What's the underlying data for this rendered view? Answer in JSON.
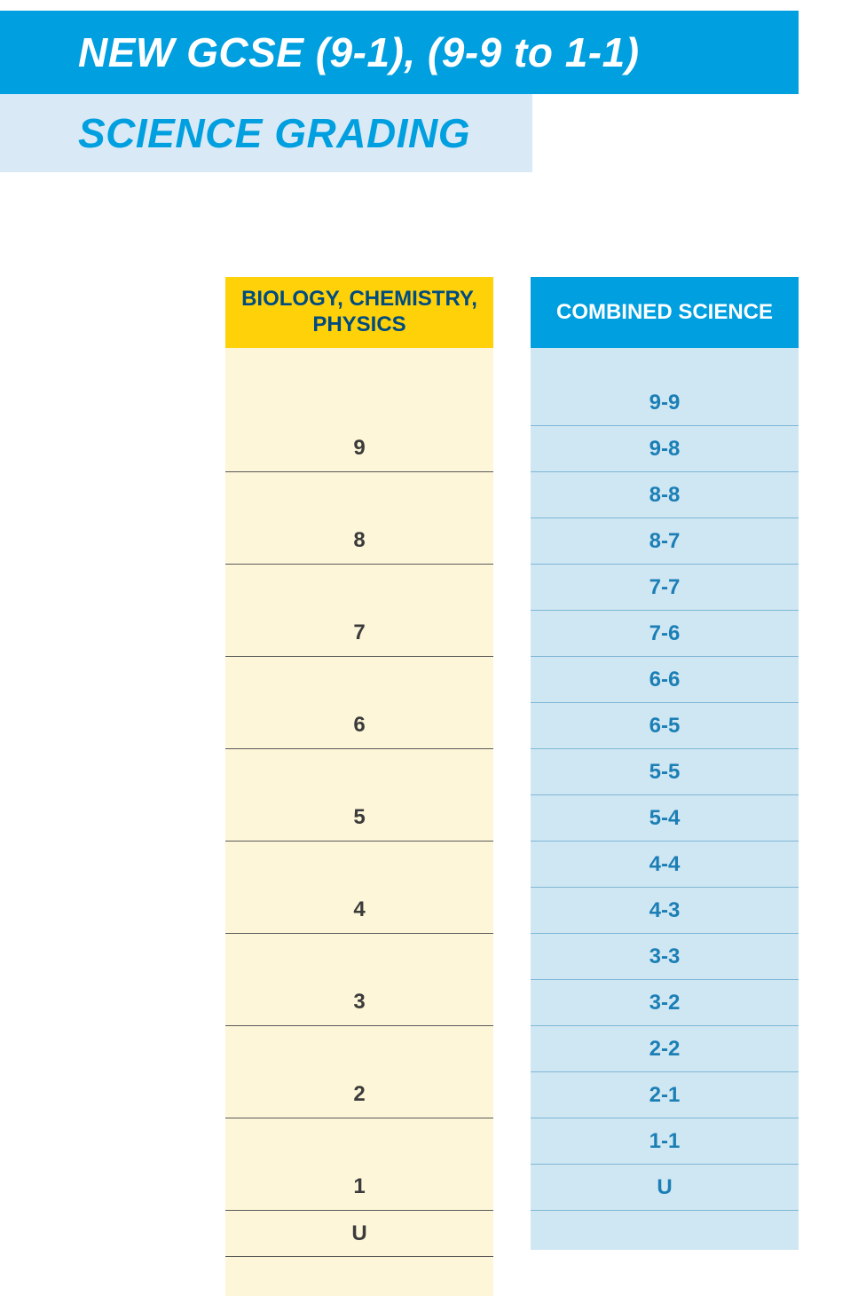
{
  "colors": {
    "banner1_bg": "#009fdf",
    "banner1_text": "#ffffff",
    "banner2_bg": "#d9eaf6",
    "banner2_text": "#009fdf",
    "left_header_bg": "#ffd109",
    "left_header_text": "#004b80",
    "left_body_bg": "#fdf6d9",
    "left_text": "#3b3b3b",
    "left_rule": "#5a5a5a",
    "right_header_bg": "#009fdf",
    "right_header_text": "#ffffff",
    "right_body_bg": "#cfe6f3",
    "right_text": "#1b7fb5",
    "right_rule": "#7fb8d6"
  },
  "title1": "NEW GCSE (9-1), (9-9 to 1-1)",
  "title2": "SCIENCE GRADING",
  "left": {
    "header": "BIOLOGY, CHEMISTRY, PHYSICS",
    "grades": [
      "9",
      "8",
      "7",
      "6",
      "5",
      "4",
      "3",
      "2",
      "1",
      "U"
    ]
  },
  "right": {
    "header": "COMBINED SCIENCE",
    "grades": [
      "9-9",
      "9-8",
      "8-8",
      "8-7",
      "7-7",
      "7-6",
      "6-6",
      "6-5",
      "5-5",
      "5-4",
      "4-4",
      "4-3",
      "3-3",
      "3-2",
      "2-2",
      "2-1",
      "1-1",
      "U"
    ]
  }
}
